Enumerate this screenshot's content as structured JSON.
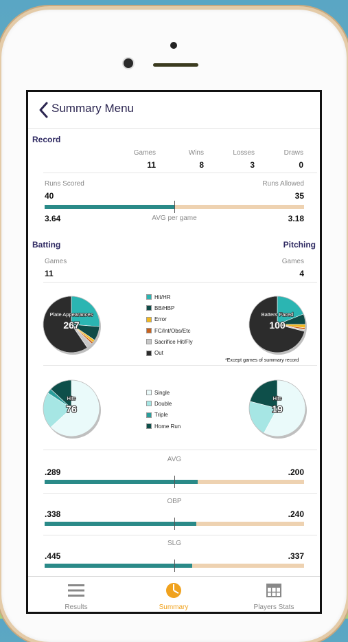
{
  "nav": {
    "title": "Summary Menu"
  },
  "record": {
    "section_title": "Record",
    "headers": {
      "games": "Games",
      "wins": "Wins",
      "losses": "Losses",
      "draws": "Draws"
    },
    "values": {
      "games": "11",
      "wins": "8",
      "losses": "3",
      "draws": "0"
    },
    "runs_scored_label": "Runs Scored",
    "runs_allowed_label": "Runs Allowed",
    "runs_scored": "40",
    "runs_allowed": "35",
    "runs_bar_fraction": 0.5,
    "avg_label": "AVG per game",
    "avg_scored": "3.64",
    "avg_allowed": "3.18"
  },
  "batting": {
    "section_title": "Batting",
    "games_label": "Games",
    "games": "11"
  },
  "pitching": {
    "section_title": "Pitching",
    "games_label": "Games",
    "games": "4"
  },
  "pa_chart": {
    "legend": [
      {
        "label": "Hit/HR",
        "color": "#2bb5b2"
      },
      {
        "label": "BB/HBP",
        "color": "#0f4b47"
      },
      {
        "label": "Error",
        "color": "#f2b81f"
      },
      {
        "label": "FC/Int/Obs/Etc",
        "color": "#c8621e"
      },
      {
        "label": "Sacrifice Hit/Fly",
        "color": "#c7c7c7"
      },
      {
        "label": "Out",
        "color": "#2c2c2c"
      }
    ],
    "batting_label": "Plate Appearances",
    "batting_total": "267",
    "pitching_label": "Batters Faced",
    "pitching_total": "100",
    "note": "*Except games of summary record"
  },
  "hits_chart": {
    "legend": [
      {
        "label": "Single",
        "color": "#eafafa"
      },
      {
        "label": "Double",
        "color": "#a6e6e4"
      },
      {
        "label": "Triple",
        "color": "#2a9e9b"
      },
      {
        "label": "Home Run",
        "color": "#0e4f4a"
      }
    ],
    "batting_label": "Hits",
    "batting_total": "76",
    "pitching_label": "Hits",
    "pitching_total": "19"
  },
  "chart_data": [
    {
      "type": "pie",
      "series_name": "Plate Appearances",
      "categories": [
        "Hit/HR",
        "BB/HBP",
        "Error",
        "FC/Int/Obs/Etc",
        "Sacrifice Hit/Fly",
        "Out"
      ],
      "values": [
        70,
        22,
        4,
        3,
        9,
        159
      ]
    },
    {
      "type": "pie",
      "series_name": "Batters Faced",
      "categories": [
        "Hit/HR",
        "BB/HBP",
        "Error",
        "FC/Int/Obs/Etc",
        "Sacrifice Hit/Fly",
        "Out"
      ],
      "values": [
        19,
        6,
        2,
        1,
        1,
        71
      ]
    },
    {
      "type": "pie",
      "series_name": "Hits",
      "categories": [
        "Single",
        "Double",
        "Triple",
        "Home Run"
      ],
      "values": [
        48,
        16,
        2,
        10
      ]
    },
    {
      "type": "pie",
      "series_name": "Hits",
      "categories": [
        "Single",
        "Double",
        "Triple",
        "Home Run"
      ],
      "values": [
        11,
        4,
        0,
        4
      ]
    }
  ],
  "stats": [
    {
      "label": "AVG",
      "left": ".289",
      "right": ".200",
      "fraction": 0.59
    },
    {
      "label": "OBP",
      "left": ".338",
      "right": ".240",
      "fraction": 0.585
    },
    {
      "label": "SLG",
      "left": ".445",
      "right": ".337",
      "fraction": 0.57
    }
  ],
  "tabs": [
    {
      "label": "Results",
      "icon": "list-icon"
    },
    {
      "label": "Summary",
      "icon": "pie-chart-icon"
    },
    {
      "label": "Players Stats",
      "icon": "grid-icon"
    }
  ],
  "colors": {
    "accent": "#f0a21e",
    "teal": "#2a8a88",
    "peach": "#eed2b1",
    "header": "#2f2a62"
  }
}
